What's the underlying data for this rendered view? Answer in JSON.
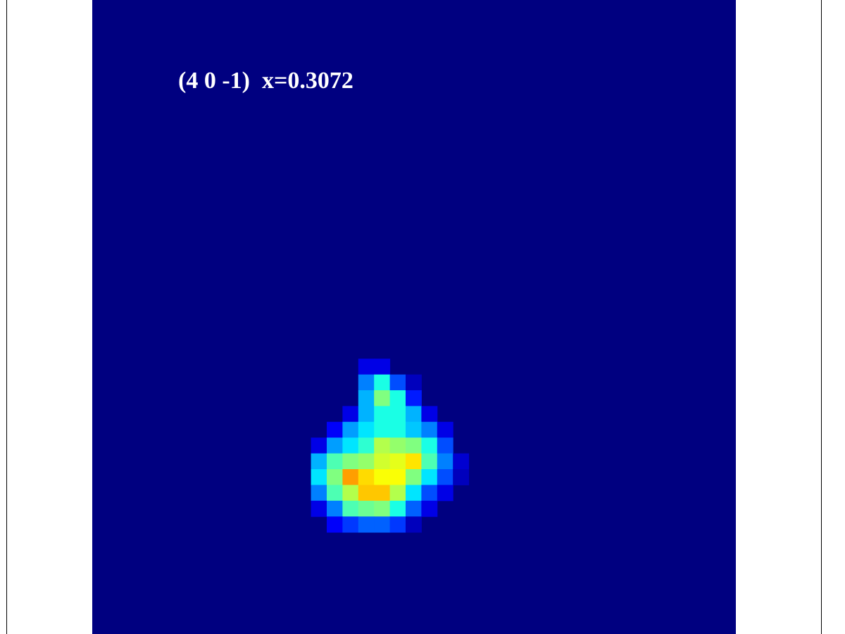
{
  "chart_data": {
    "type": "heatmap",
    "title": "(4 0 -1)  x=0.3072",
    "colormap": "jet",
    "value_range": [
      0,
      1
    ],
    "background_value": 0,
    "grid_size": [
      40,
      40
    ],
    "cells": [
      [
        17,
        23,
        0.1
      ],
      [
        18,
        23,
        0.1
      ],
      [
        17,
        24,
        0.25
      ],
      [
        18,
        24,
        0.4
      ],
      [
        19,
        24,
        0.2
      ],
      [
        20,
        24,
        0.06
      ],
      [
        17,
        25,
        0.3
      ],
      [
        18,
        25,
        0.5
      ],
      [
        19,
        25,
        0.4
      ],
      [
        20,
        25,
        0.15
      ],
      [
        16,
        26,
        0.1
      ],
      [
        17,
        26,
        0.3
      ],
      [
        18,
        26,
        0.4
      ],
      [
        19,
        26,
        0.4
      ],
      [
        20,
        26,
        0.3
      ],
      [
        21,
        26,
        0.1
      ],
      [
        15,
        27,
        0.12
      ],
      [
        16,
        27,
        0.28
      ],
      [
        17,
        27,
        0.35
      ],
      [
        18,
        27,
        0.4
      ],
      [
        19,
        27,
        0.4
      ],
      [
        20,
        27,
        0.32
      ],
      [
        21,
        27,
        0.25
      ],
      [
        22,
        27,
        0.1
      ],
      [
        14,
        28,
        0.1
      ],
      [
        15,
        28,
        0.28
      ],
      [
        16,
        28,
        0.35
      ],
      [
        17,
        28,
        0.42
      ],
      [
        18,
        28,
        0.55
      ],
      [
        19,
        28,
        0.52
      ],
      [
        20,
        28,
        0.5
      ],
      [
        21,
        28,
        0.4
      ],
      [
        22,
        28,
        0.2
      ],
      [
        14,
        29,
        0.3
      ],
      [
        15,
        29,
        0.45
      ],
      [
        16,
        29,
        0.5
      ],
      [
        17,
        29,
        0.52
      ],
      [
        18,
        29,
        0.58
      ],
      [
        19,
        29,
        0.6
      ],
      [
        20,
        29,
        0.65
      ],
      [
        21,
        29,
        0.45
      ],
      [
        22,
        29,
        0.25
      ],
      [
        23,
        29,
        0.08
      ],
      [
        14,
        30,
        0.35
      ],
      [
        15,
        30,
        0.5
      ],
      [
        16,
        30,
        0.72
      ],
      [
        17,
        30,
        0.66
      ],
      [
        18,
        30,
        0.62
      ],
      [
        19,
        30,
        0.62
      ],
      [
        20,
        30,
        0.5
      ],
      [
        21,
        30,
        0.35
      ],
      [
        22,
        30,
        0.2
      ],
      [
        23,
        30,
        0.06
      ],
      [
        14,
        31,
        0.25
      ],
      [
        15,
        31,
        0.45
      ],
      [
        16,
        31,
        0.55
      ],
      [
        17,
        31,
        0.68
      ],
      [
        18,
        31,
        0.68
      ],
      [
        19,
        31,
        0.55
      ],
      [
        20,
        31,
        0.35
      ],
      [
        21,
        31,
        0.2
      ],
      [
        22,
        31,
        0.1
      ],
      [
        14,
        32,
        0.1
      ],
      [
        15,
        32,
        0.25
      ],
      [
        16,
        32,
        0.45
      ],
      [
        17,
        32,
        0.48
      ],
      [
        18,
        32,
        0.5
      ],
      [
        19,
        32,
        0.4
      ],
      [
        20,
        32,
        0.22
      ],
      [
        21,
        32,
        0.1
      ],
      [
        15,
        33,
        0.12
      ],
      [
        16,
        33,
        0.18
      ],
      [
        17,
        33,
        0.22
      ],
      [
        18,
        33,
        0.22
      ],
      [
        19,
        33,
        0.18
      ],
      [
        20,
        33,
        0.06
      ]
    ]
  }
}
